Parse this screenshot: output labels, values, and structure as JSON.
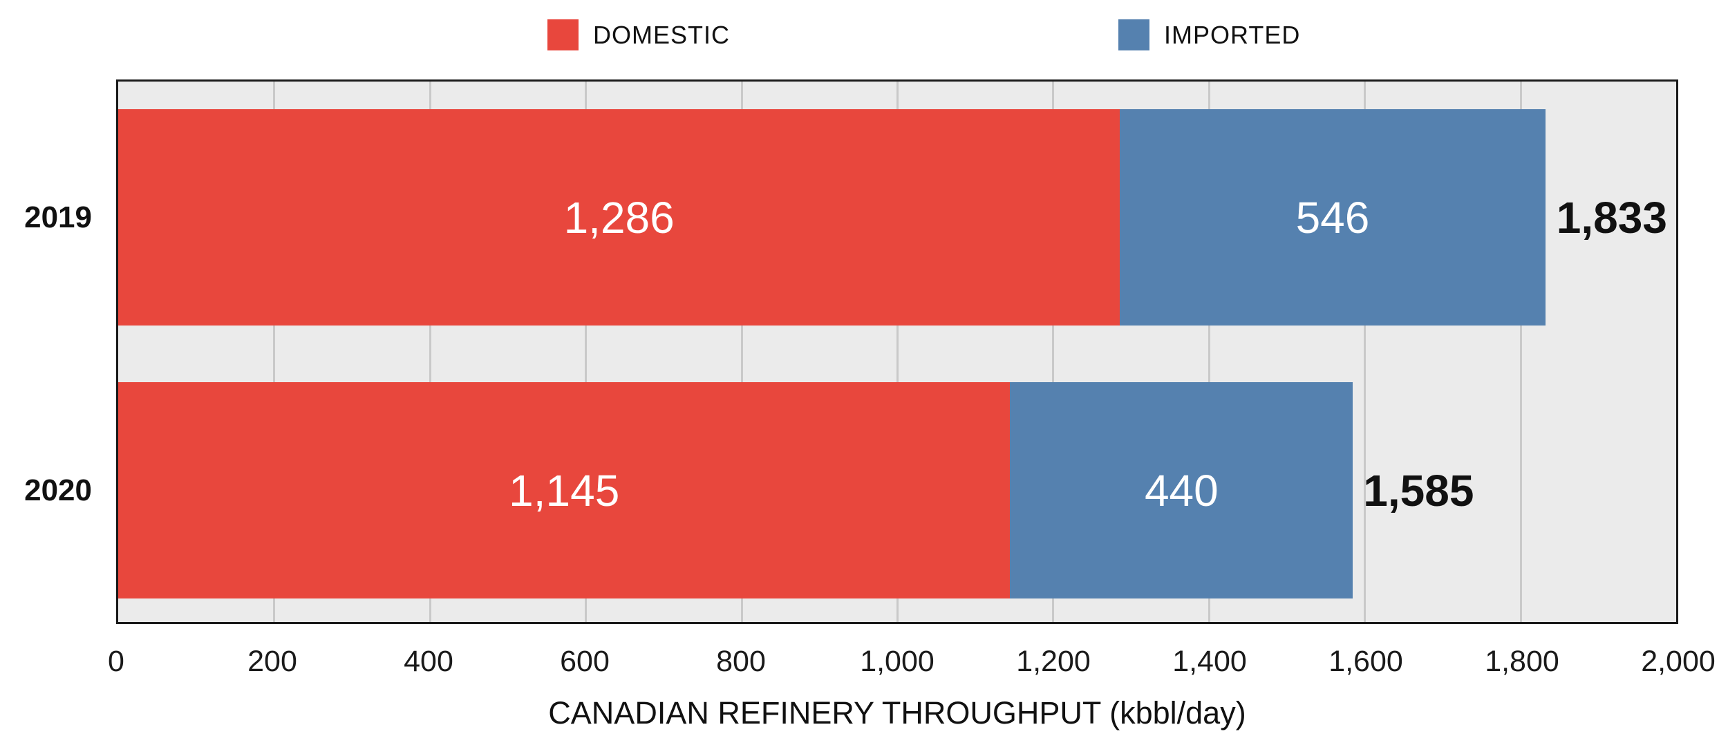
{
  "colors": {
    "domestic": "#E8473D",
    "imported": "#5581AF",
    "plot_background": "#EBEBEB",
    "gridline": "#C9C9C9",
    "axis_border": "#1A1A1A",
    "bar_label_text": "#FFFFFF",
    "text": "#111111",
    "page_background": "#FFFFFF"
  },
  "legend": {
    "items": [
      {
        "label": "DOMESTIC",
        "color": "#E8473D",
        "series_key": "domestic"
      },
      {
        "label": "IMPORTED",
        "color": "#5581AF",
        "series_key": "imported"
      }
    ]
  },
  "chart_data": {
    "type": "bar",
    "orientation": "horizontal",
    "stacked": true,
    "title": "",
    "xlabel": "CANADIAN REFINERY THROUGHPUT (kbbl/day)",
    "ylabel": "",
    "categories": [
      "2019",
      "2020"
    ],
    "series": [
      {
        "name": "DOMESTIC",
        "color": "#E8473D",
        "values": [
          1286,
          1145
        ],
        "value_labels": [
          "1,286",
          "1,145"
        ]
      },
      {
        "name": "IMPORTED",
        "color": "#5581AF",
        "values": [
          546,
          440
        ],
        "value_labels": [
          "546",
          "440"
        ]
      }
    ],
    "totals": [
      1833,
      1585
    ],
    "total_labels": [
      "1,833",
      "1,585"
    ],
    "xlim": [
      0,
      2000
    ],
    "xticks": [
      0,
      200,
      400,
      600,
      800,
      1000,
      1200,
      1400,
      1600,
      1800,
      2000
    ],
    "xtick_labels": [
      "0",
      "200",
      "400",
      "600",
      "800",
      "1,000",
      "1,200",
      "1,400",
      "1,600",
      "1,800",
      "2,000"
    ],
    "grid": true,
    "legend_position": "top"
  }
}
